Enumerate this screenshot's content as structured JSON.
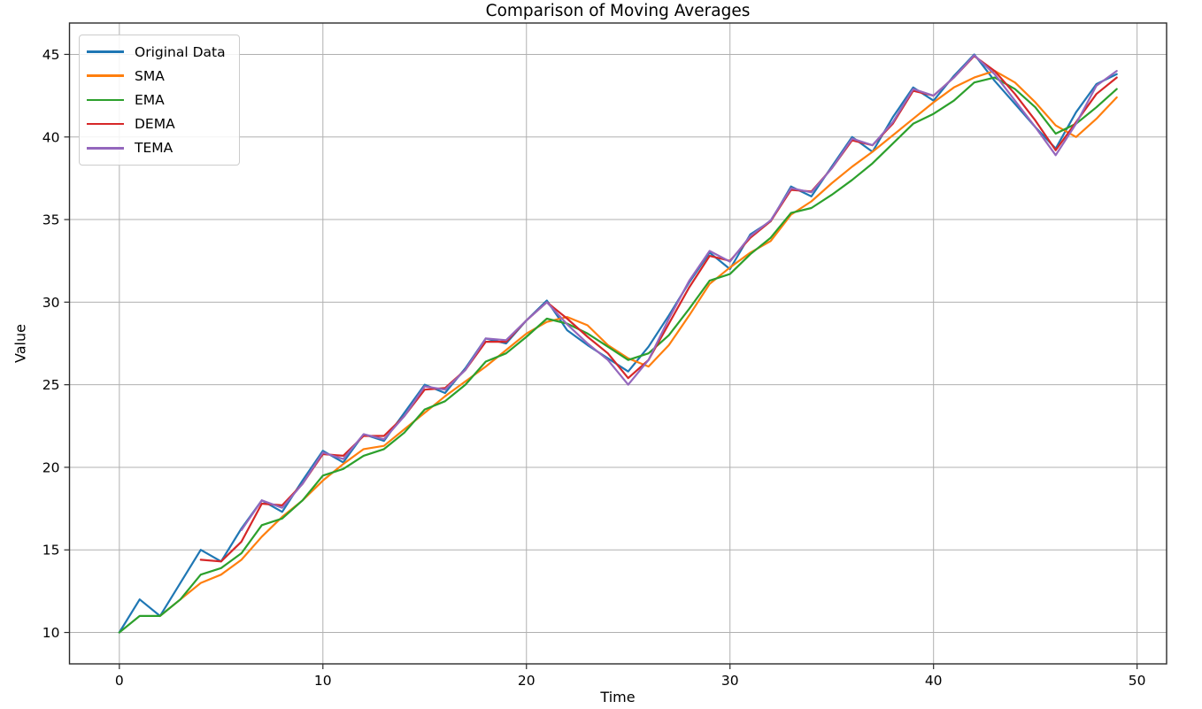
{
  "figure": {
    "background": "#ffffff",
    "text_color": "#000000",
    "grid_color": "#b0b0b0",
    "spine_color": "#2b2b2b"
  },
  "chart_data": {
    "type": "line",
    "title": "Comparison of Moving Averages",
    "xlabel": "Time",
    "ylabel": "Value",
    "x_ticks": [
      0,
      10,
      20,
      30,
      40,
      50
    ],
    "y_ticks": [
      10,
      15,
      20,
      25,
      30,
      35,
      40,
      45
    ],
    "xlim": [
      -2.45,
      51.45
    ],
    "ylim": [
      8.1,
      46.9
    ],
    "grid": true,
    "legend_position": "upper left",
    "series": [
      {
        "name": "Original Data",
        "color": "#1f77b4",
        "x_start": 0,
        "values": [
          10,
          12,
          11,
          13,
          15,
          14.3,
          16.3,
          18,
          17.3,
          19.2,
          21,
          20.3,
          22,
          21.6,
          23.3,
          25,
          24.5,
          26,
          27.8,
          27.5,
          28.9,
          30.1,
          28.3,
          27.4,
          26.6,
          25.8,
          27.3,
          29.2,
          31.2,
          33,
          32,
          34.1,
          34.9,
          37,
          36.4,
          38.2,
          40,
          39.1,
          41.2,
          43,
          42.2,
          43.7,
          45,
          43.4,
          42,
          40.6,
          39.3,
          41.5,
          43.2,
          43.8
        ]
      },
      {
        "name": "SMA",
        "color": "#ff7f0e",
        "x_start": 2,
        "values": [
          11,
          12,
          13,
          13.5,
          14.4,
          15.8,
          17,
          18,
          19.2,
          20.2,
          21.1,
          21.3,
          22.3,
          23.3,
          24.3,
          25.2,
          26.1,
          27.1,
          28.1,
          28.8,
          29.1,
          28.6,
          27.4,
          26.6,
          26.1,
          27.4,
          29.2,
          31.1,
          32.1,
          33,
          33.7,
          35.3,
          36.1,
          37.2,
          38.2,
          39.1,
          40.1,
          41.1,
          42.1,
          43,
          43.6,
          44,
          43.3,
          42.1,
          40.7,
          40,
          41.1,
          42.4
        ]
      },
      {
        "name": "EMA",
        "color": "#2ca02c",
        "x_start": 0,
        "values": [
          10,
          11,
          11,
          12,
          13.5,
          13.9,
          14.8,
          16.5,
          16.9,
          18,
          19.5,
          19.9,
          20.7,
          21.1,
          22.1,
          23.5,
          24,
          25,
          26.4,
          26.9,
          27.9,
          29,
          28.7,
          28.1,
          27.3,
          26.5,
          26.9,
          28,
          29.6,
          31.3,
          31.7,
          32.9,
          33.9,
          35.4,
          35.7,
          36.5,
          37.4,
          38.4,
          39.6,
          40.8,
          41.4,
          42.2,
          43.3,
          43.6,
          42.9,
          41.8,
          40.2,
          40.8,
          41.8,
          42.9
        ]
      },
      {
        "name": "DEMA",
        "color": "#d62728",
        "x_start": 4,
        "values": [
          14.4,
          14.3,
          15.5,
          17.8,
          17.7,
          19,
          20.8,
          20.7,
          21.9,
          21.9,
          23.1,
          24.7,
          24.8,
          25.9,
          27.6,
          27.6,
          28.9,
          30,
          29,
          27.9,
          26.9,
          25.4,
          26.5,
          28.7,
          30.9,
          32.8,
          32.5,
          33.9,
          34.9,
          36.8,
          36.7,
          38.1,
          39.8,
          39.5,
          40.8,
          42.8,
          42.5,
          43.6,
          44.9,
          44,
          42.6,
          41,
          39.2,
          40.9,
          42.6,
          43.6
        ]
      },
      {
        "name": "TEMA",
        "color": "#9467bd",
        "x_start": 6,
        "values": [
          16.2,
          18,
          17.55,
          19,
          20.9,
          20.5,
          22,
          21.7,
          23.1,
          24.9,
          24.7,
          25.9,
          27.8,
          27.7,
          28.9,
          30,
          28.65,
          27.5,
          26.5,
          25,
          26.5,
          29,
          31.3,
          33.1,
          32.45,
          34,
          34.95,
          36.9,
          36.65,
          38.1,
          39.9,
          39.5,
          40.9,
          42.9,
          42.5,
          43.6,
          44.95,
          43.8,
          42.2,
          40.6,
          38.9,
          40.8,
          43.1,
          44
        ]
      }
    ]
  }
}
